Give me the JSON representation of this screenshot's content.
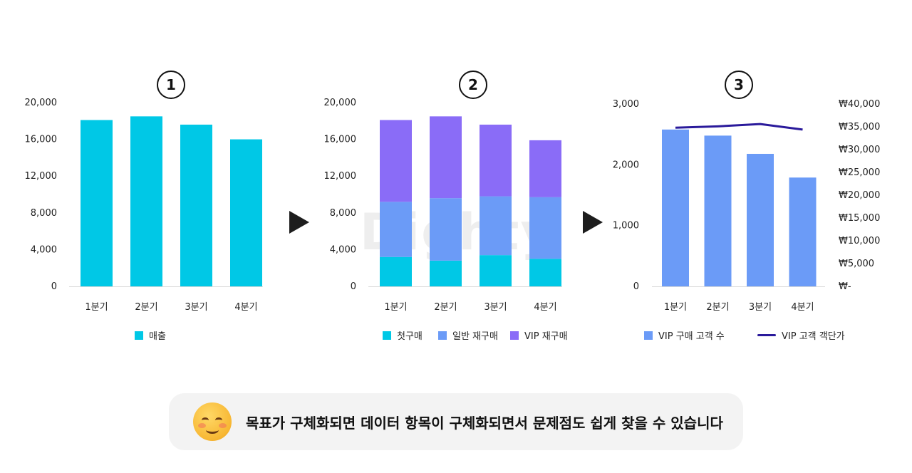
{
  "watermark": "Dighty",
  "arrows": [
    "next-arrow-1",
    "next-arrow-2"
  ],
  "banner": {
    "emoji_icon": "smiling-face-icon",
    "text": "목표가 구체화되면 데이터 항목이 구체화되면서 문제점도 쉽게 찾을 수 있습니다"
  },
  "colors": {
    "sales": "#00c8e6",
    "first_purchase": "#00c8e6",
    "general_repurchase": "#6b9bf7",
    "vip_repurchase": "#8a6cf7",
    "vip_customers": "#6b9bf7",
    "vip_line": "#2a1a9b"
  },
  "chart_data": [
    {
      "step": "1",
      "type": "bar",
      "categories": [
        "1분기",
        "2분기",
        "3분기",
        "4분기"
      ],
      "series": [
        {
          "name": "매출",
          "values": [
            18100,
            18500,
            17600,
            16000
          ]
        }
      ],
      "ylim": [
        0,
        20000
      ],
      "yticks": [
        "0",
        "4,000",
        "8,000",
        "12,000",
        "16,000",
        "20,000"
      ],
      "legend": [
        "매출"
      ]
    },
    {
      "step": "2",
      "type": "bar",
      "stacked": true,
      "categories": [
        "1분기",
        "2분기",
        "3분기",
        "4분기"
      ],
      "series": [
        {
          "name": "첫구매",
          "values": [
            3200,
            2800,
            3400,
            3000
          ]
        },
        {
          "name": "일반 재구매",
          "values": [
            6000,
            6800,
            6400,
            6700
          ]
        },
        {
          "name": "VIP 재구매",
          "values": [
            8900,
            8900,
            7800,
            6200
          ]
        }
      ],
      "ylim": [
        0,
        20000
      ],
      "yticks": [
        "0",
        "4,000",
        "8,000",
        "12,000",
        "16,000",
        "20,000"
      ],
      "legend": [
        "첫구매",
        "일반 재구매",
        "VIP 재구매"
      ]
    },
    {
      "step": "3",
      "type": "bar+line",
      "categories": [
        "1분기",
        "2분기",
        "3분기",
        "4분기"
      ],
      "series": [
        {
          "name": "VIP 구매 고객 수",
          "type": "bar",
          "axis": "left",
          "values": [
            2580,
            2480,
            2180,
            1790
          ]
        },
        {
          "name": "VIP 고객 객단가",
          "type": "line",
          "axis": "right",
          "values": [
            34800,
            35100,
            35600,
            34400
          ]
        }
      ],
      "ylim_left": [
        0,
        3000
      ],
      "ylim_right": [
        0,
        40000
      ],
      "yticks_left": [
        "0",
        "1,000",
        "2,000",
        "3,000"
      ],
      "yticks_right": [
        "₩-",
        "₩5,000",
        "₩10,000",
        "₩15,000",
        "₩20,000",
        "₩25,000",
        "₩30,000",
        "₩35,000",
        "₩40,000"
      ],
      "legend": [
        "VIP 구매 고객 수",
        "VIP 고객 객단가"
      ]
    }
  ]
}
